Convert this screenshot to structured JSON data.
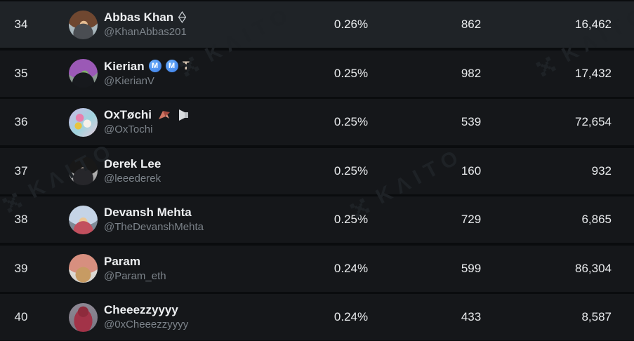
{
  "watermark": {
    "text": "KΛITO"
  },
  "table": {
    "rows": [
      {
        "rank": "34",
        "name": "Abbas Khan",
        "handle": "@KhanAbbas201",
        "percent": "0.26%",
        "score": "862",
        "total": "16,462",
        "decorations": [
          {
            "type": "eth"
          }
        ]
      },
      {
        "rank": "35",
        "name": "Kierian",
        "handle": "@KierianV",
        "percent": "0.25%",
        "score": "982",
        "total": "17,432",
        "decorations": [
          {
            "type": "m",
            "value": "M"
          },
          {
            "type": "m",
            "value": "M"
          },
          {
            "type": "text",
            "value": "T"
          }
        ]
      },
      {
        "rank": "36",
        "name": "OxTøchi",
        "handle": "@OxTochi",
        "percent": "0.25%",
        "score": "539",
        "total": "72,654",
        "decorations": [
          {
            "type": "bird"
          },
          {
            "type": "speaker"
          }
        ]
      },
      {
        "rank": "37",
        "name": "Derek Lee",
        "handle": "@leeederek",
        "percent": "0.25%",
        "score": "160",
        "total": "932",
        "decorations": []
      },
      {
        "rank": "38",
        "name": "Devansh Mehta",
        "handle": "@TheDevanshMehta",
        "percent": "0.25%",
        "score": "729",
        "total": "6,865",
        "decorations": []
      },
      {
        "rank": "39",
        "name": "Param",
        "handle": "@Param_eth",
        "percent": "0.24%",
        "score": "599",
        "total": "86,304",
        "decorations": []
      },
      {
        "rank": "40",
        "name": "Cheeezzyyyy",
        "handle": "@0xCheeezzyyyy",
        "percent": "0.24%",
        "score": "433",
        "total": "8,587",
        "decorations": []
      }
    ]
  }
}
